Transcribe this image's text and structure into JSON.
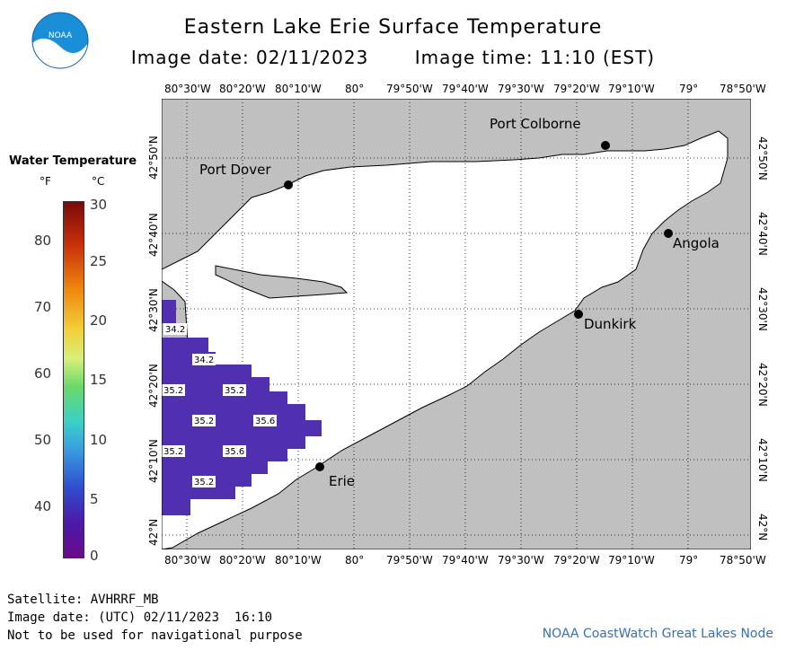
{
  "header": {
    "title": "Eastern Lake Erie Surface Temperature",
    "image_date": "Image date: 02/11/2023",
    "image_time": "Image time: 11:10 (EST)"
  },
  "logo": {
    "text": "NOAA",
    "icon": "noaa-logo"
  },
  "axes": {
    "lon_labels": [
      "80°30'W",
      "80°20'W",
      "80°10'W",
      "80°",
      "79°50'W",
      "79°40'W",
      "79°30'W",
      "79°20'W",
      "79°10'W",
      "79°",
      "78°50'W"
    ],
    "lat_labels": [
      "42°50'N",
      "42°40'N",
      "42°30'N",
      "42°20'N",
      "42°10'N",
      "42°N"
    ]
  },
  "legend": {
    "title": "Water Temperature",
    "unit_f": "°F",
    "unit_c": "°C",
    "f_ticks": [
      "80",
      "70",
      "60",
      "50",
      "40"
    ],
    "c_ticks": [
      "30",
      "25",
      "20",
      "15",
      "10",
      "5",
      "0"
    ],
    "colors": [
      "#7a0a0a",
      "#c8300a",
      "#f08a10",
      "#f2d03a",
      "#d8f07a",
      "#6ad96a",
      "#3ad0c8",
      "#3a9ae0",
      "#2f4fd0",
      "#4a1aa8",
      "#6a0a8a"
    ]
  },
  "cities": {
    "port_colborne": "Port Colborne",
    "port_dover": "Port Dover",
    "angola": "Angola",
    "dunkirk": "Dunkirk",
    "erie": "Erie"
  },
  "temperature_labels": [
    "34.2",
    "34.2",
    "35.2",
    "35.2",
    "35.2",
    "35.6",
    "35.2",
    "35.6",
    "35.2"
  ],
  "colors": {
    "land": "#c0c0c0",
    "water": "#ffffff",
    "data_cells": "#5030b0",
    "credit": "#3a6fb0"
  },
  "footer": {
    "satellite": "Satellite: AVHRRF_MB",
    "image_date_utc": "Image date: (UTC) 02/11/2023  16:10",
    "disclaimer": "Not to be used for navigational purpose",
    "credit": "NOAA CoastWatch Great Lakes Node"
  }
}
